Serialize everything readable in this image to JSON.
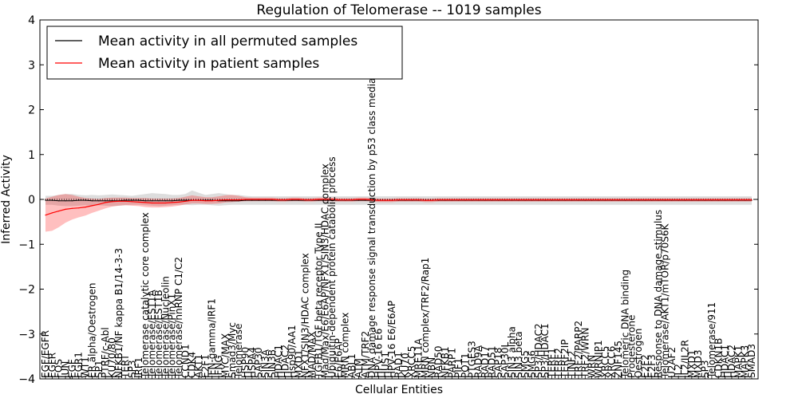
{
  "chart_data": {
    "type": "line",
    "title": "Regulation of Telomerase -- 1019 samples",
    "xlabel": "Cellular Entities",
    "ylabel": "Inferred Activity",
    "ylim": [
      -4,
      4
    ],
    "yticks": [
      -4,
      -3,
      -2,
      -1,
      0,
      1,
      2,
      3,
      4
    ],
    "ytick_labels": [
      "−4",
      "−3",
      "−2",
      "−1",
      "0",
      "1",
      "2",
      "3",
      "4"
    ],
    "grid": false,
    "legend_position": "top-left",
    "legend": [
      "Mean activity in all permuted samples",
      "Mean activity in patient samples"
    ],
    "categories": [
      "EGF/EGFR",
      "EGFR",
      "FOS",
      "JUN",
      "EGF",
      "EGR1",
      "WT1",
      "ER alpha/Oestrogen",
      "SP1",
      "PTRF/c-Abl",
      "KU70/80",
      "NFKB1/NF kappa B1/14-3-3",
      "TERT",
      "SP3",
      "IRF1",
      "Telomerase catalytic core complex",
      "Telomerase/EST1A",
      "Telomerase/EST1B",
      "Telomerase/Nucleolin",
      "Telomerase/PinX1",
      "Telomerase/hnRNP C1/C2",
      "CCND1",
      "CDK4",
      "AKT1",
      "E2F1",
      "IFN-gamma/IRF1",
      "IFNG",
      "MYC/MAX",
      "Smad3/Myc",
      "Telomerase",
      "HSP90",
      "HSPA4",
      "SAP30",
      "SIN3A",
      "SIN3B",
      "HDAC1",
      "HDAC2",
      "Hsp90/AA1",
      "MXD1",
      "NFX1/SIN3/HDAC complex",
      "MAD/MAX",
      "TGFB1/TGF beta receptor Type II",
      "Mad/Max/E6/E6AP/NFX1/SIN3/HDAC complex",
      "Ubiquitin-dependent protein catabolic process",
      "E6/E6AP",
      "MRN complex",
      "ABL1",
      "ATM",
      "ATM/TRF2",
      "DNA damage response signal transduction by p53 class mediator",
      "HPV-16 E6",
      "HUS1",
      "HPV-16 E6/E6AP",
      "RAD1",
      "KU70",
      "XRCC5",
      "MRE11A",
      "MRN complex/TRF2/Rap1",
      "NBN",
      "RAD50",
      "NFKB1",
      "PARP1",
      "PIF1",
      "POT1",
      "PTGES3",
      "RAD9A",
      "RAD17",
      "RAD51",
      "SAP18",
      "SAP30L",
      "SIN3 alpha",
      "SIN3 beta",
      "SMG5",
      "SMG6",
      "SP3/HDAC2",
      "SP3/HDAC1",
      "TERF1",
      "TERF2",
      "TERF2IP",
      "TINF2",
      "TRF2/PARP2",
      "TRF2/WRN",
      "WRN",
      "WRNIP1",
      "XRCC5",
      "XRCC6",
      "ZNF145",
      "Telomeric DNA binding",
      "Progesterone",
      "Oestrogen",
      "E2F2",
      "E2F3",
      "Response to DNA damage stimulus",
      "Telomerase/AKT1/mTOR/p70S6K",
      "U2AF2",
      "IL2",
      "IL2/IL2R",
      "MXD1",
      "MXD3",
      "SP3",
      "Telomerase/911",
      "CDKN1B",
      "HDAC1",
      "HDAC2",
      "MAPK1",
      "MAPK3",
      "SMAD3"
    ],
    "series": [
      {
        "name": "Mean activity in all permuted samples",
        "color": "#000000",
        "values": [
          -0.02,
          -0.02,
          -0.03,
          -0.03,
          -0.03,
          -0.02,
          -0.02,
          -0.03,
          -0.03,
          -0.03,
          -0.03,
          -0.03,
          -0.02,
          -0.02,
          -0.02,
          -0.03,
          -0.03,
          -0.03,
          -0.03,
          -0.03,
          -0.02,
          -0.02,
          -0.02,
          -0.02,
          -0.02,
          -0.02,
          -0.03,
          -0.03,
          -0.03,
          -0.03,
          -0.02,
          -0.02,
          -0.02,
          -0.02,
          -0.02,
          -0.02,
          -0.02,
          -0.02,
          -0.02,
          -0.02,
          -0.02,
          -0.02,
          -0.02,
          -0.02,
          -0.02,
          -0.02,
          -0.02,
          -0.02,
          -0.02,
          -0.02,
          -0.02,
          -0.02,
          -0.02,
          -0.02,
          -0.02,
          -0.02,
          -0.02,
          -0.02,
          -0.02,
          -0.02,
          -0.02,
          -0.02,
          -0.02,
          -0.02,
          -0.02,
          -0.02,
          -0.02,
          -0.02,
          -0.02,
          -0.02,
          -0.02,
          -0.02,
          -0.02,
          -0.02,
          -0.02,
          -0.02,
          -0.02,
          -0.02,
          -0.02,
          -0.02,
          -0.02,
          -0.02,
          -0.02,
          -0.02,
          -0.02,
          -0.02,
          -0.02,
          -0.02,
          -0.02,
          -0.02,
          -0.02,
          -0.02,
          -0.02,
          -0.02,
          -0.02,
          -0.02,
          -0.02,
          -0.02,
          -0.02,
          -0.02,
          -0.02,
          -0.02,
          -0.02,
          -0.02,
          -0.02,
          -0.02,
          -0.02
        ],
        "band": {
          "color": "#bbbbbb",
          "lower": [
            -0.12,
            -0.12,
            -0.14,
            -0.15,
            -0.15,
            -0.14,
            -0.13,
            -0.14,
            -0.13,
            -0.14,
            -0.15,
            -0.14,
            -0.13,
            -0.12,
            -0.12,
            -0.13,
            -0.14,
            -0.15,
            -0.14,
            -0.13,
            -0.12,
            -0.12,
            -0.13,
            -0.12,
            -0.12,
            -0.13,
            -0.14,
            -0.13,
            -0.12,
            -0.12,
            -0.12,
            -0.12,
            -0.12,
            -0.12,
            -0.12,
            -0.12,
            -0.12,
            -0.12,
            -0.12,
            -0.12,
            -0.12,
            -0.12,
            -0.12,
            -0.12,
            -0.12,
            -0.12,
            -0.12,
            -0.12,
            -0.12,
            -0.12,
            -0.12,
            -0.12,
            -0.12,
            -0.12,
            -0.12,
            -0.12,
            -0.12,
            -0.12,
            -0.12,
            -0.12,
            -0.12,
            -0.12,
            -0.12,
            -0.12,
            -0.12,
            -0.12,
            -0.12,
            -0.12,
            -0.12,
            -0.12,
            -0.12,
            -0.12,
            -0.12,
            -0.12,
            -0.12,
            -0.12,
            -0.12,
            -0.12,
            -0.12,
            -0.12,
            -0.12,
            -0.12,
            -0.12,
            -0.12,
            -0.12,
            -0.12,
            -0.12,
            -0.12,
            -0.12,
            -0.12,
            -0.12,
            -0.12,
            -0.12,
            -0.12,
            -0.12,
            -0.12,
            -0.12,
            -0.12,
            -0.12,
            -0.12,
            -0.12,
            -0.12,
            -0.12,
            -0.12,
            -0.12,
            -0.12,
            -0.12
          ],
          "upper": [
            0.08,
            0.08,
            0.1,
            0.12,
            0.12,
            0.1,
            0.09,
            0.1,
            0.09,
            0.1,
            0.11,
            0.1,
            0.09,
            0.08,
            0.1,
            0.12,
            0.14,
            0.13,
            0.12,
            0.1,
            0.1,
            0.12,
            0.2,
            0.15,
            0.1,
            0.12,
            0.14,
            0.12,
            0.1,
            0.1,
            0.08,
            0.07,
            0.07,
            0.07,
            0.07,
            0.07,
            0.07,
            0.07,
            0.07,
            0.07,
            0.07,
            0.07,
            0.07,
            0.07,
            0.07,
            0.07,
            0.07,
            0.07,
            0.07,
            0.07,
            0.07,
            0.07,
            0.07,
            0.07,
            0.07,
            0.07,
            0.07,
            0.07,
            0.07,
            0.07,
            0.07,
            0.07,
            0.07,
            0.07,
            0.07,
            0.07,
            0.07,
            0.07,
            0.07,
            0.07,
            0.07,
            0.07,
            0.07,
            0.07,
            0.07,
            0.07,
            0.07,
            0.07,
            0.07,
            0.07,
            0.07,
            0.07,
            0.07,
            0.07,
            0.07,
            0.07,
            0.07,
            0.07,
            0.07,
            0.07,
            0.07,
            0.07,
            0.07,
            0.07,
            0.07,
            0.07,
            0.07,
            0.07,
            0.07,
            0.07,
            0.07,
            0.07,
            0.07,
            0.07,
            0.07,
            0.07,
            0.07
          ]
        }
      },
      {
        "name": "Mean activity in patient samples",
        "color": "#ff0000",
        "values": [
          -0.35,
          -0.3,
          -0.26,
          -0.22,
          -0.2,
          -0.19,
          -0.17,
          -0.14,
          -0.11,
          -0.07,
          -0.05,
          -0.04,
          -0.04,
          -0.05,
          -0.06,
          -0.07,
          -0.08,
          -0.08,
          -0.08,
          -0.07,
          -0.06,
          -0.04,
          -0.02,
          -0.02,
          -0.03,
          -0.03,
          -0.02,
          -0.01,
          -0.01,
          -0.01,
          0.0,
          0.0,
          0.0,
          0.0,
          0.0,
          -0.01,
          -0.01,
          0.0,
          0.0,
          -0.01,
          -0.01,
          0.0,
          0.0,
          0.0,
          -0.01,
          -0.01,
          -0.01,
          0.0,
          0.0,
          -0.01,
          -0.02,
          -0.02,
          -0.02,
          -0.01,
          -0.01,
          -0.01,
          -0.01,
          -0.02,
          -0.02,
          -0.01,
          -0.01,
          -0.01,
          -0.01,
          -0.01,
          -0.01,
          -0.01,
          -0.01,
          -0.01,
          -0.01,
          -0.01,
          -0.01,
          -0.01,
          -0.01,
          -0.01,
          -0.01,
          -0.01,
          -0.01,
          -0.01,
          -0.01,
          -0.01,
          -0.01,
          -0.01,
          -0.01,
          -0.01,
          -0.01,
          -0.01,
          -0.01,
          -0.01,
          -0.01,
          -0.01,
          -0.01,
          -0.01,
          -0.01,
          -0.01,
          -0.01,
          -0.01,
          -0.01,
          -0.01,
          -0.01,
          -0.01,
          -0.01,
          -0.01,
          -0.01,
          -0.01,
          -0.01,
          -0.01,
          -0.01
        ],
        "band": {
          "color": "#ff0000",
          "lower": [
            -0.72,
            -0.7,
            -0.62,
            -0.52,
            -0.45,
            -0.4,
            -0.36,
            -0.3,
            -0.25,
            -0.2,
            -0.16,
            -0.14,
            -0.13,
            -0.14,
            -0.15,
            -0.17,
            -0.18,
            -0.18,
            -0.17,
            -0.16,
            -0.14,
            -0.11,
            -0.09,
            -0.09,
            -0.1,
            -0.1,
            -0.09,
            -0.07,
            -0.06,
            -0.05,
            -0.04,
            -0.04,
            -0.04,
            -0.04,
            -0.04,
            -0.05,
            -0.05,
            -0.04,
            -0.04,
            -0.05,
            -0.05,
            -0.04,
            -0.04,
            -0.04,
            -0.05,
            -0.05,
            -0.05,
            -0.04,
            -0.04,
            -0.05,
            -0.06,
            -0.06,
            -0.06,
            -0.05,
            -0.05,
            -0.05,
            -0.05,
            -0.06,
            -0.06,
            -0.05,
            -0.05,
            -0.05,
            -0.05,
            -0.05,
            -0.05,
            -0.05,
            -0.05,
            -0.05,
            -0.05,
            -0.05,
            -0.05,
            -0.05,
            -0.05,
            -0.05,
            -0.05,
            -0.05,
            -0.05,
            -0.05,
            -0.05,
            -0.05,
            -0.05,
            -0.05,
            -0.05,
            -0.05,
            -0.05,
            -0.05,
            -0.05,
            -0.05,
            -0.05,
            -0.05,
            -0.05,
            -0.05,
            -0.05,
            -0.05,
            -0.05,
            -0.05,
            -0.05,
            -0.05,
            -0.05,
            -0.05,
            -0.05,
            -0.05,
            -0.05,
            -0.05,
            -0.05,
            -0.05,
            -0.05
          ],
          "upper": [
            0.02,
            0.06,
            0.1,
            0.12,
            0.1,
            0.06,
            0.03,
            0.02,
            0.01,
            0.03,
            0.04,
            0.04,
            0.04,
            0.03,
            0.03,
            0.03,
            0.02,
            0.02,
            0.02,
            0.02,
            0.03,
            0.06,
            0.09,
            0.07,
            0.05,
            0.05,
            0.07,
            0.09,
            0.1,
            0.08,
            0.05,
            0.04,
            0.04,
            0.04,
            0.04,
            0.03,
            0.03,
            0.04,
            0.04,
            0.03,
            0.03,
            0.04,
            0.04,
            0.04,
            0.03,
            0.03,
            0.03,
            0.04,
            0.04,
            0.03,
            0.02,
            0.02,
            0.02,
            0.03,
            0.03,
            0.03,
            0.03,
            0.02,
            0.02,
            0.03,
            0.03,
            0.03,
            0.03,
            0.03,
            0.03,
            0.03,
            0.03,
            0.03,
            0.03,
            0.03,
            0.03,
            0.03,
            0.03,
            0.03,
            0.03,
            0.03,
            0.03,
            0.03,
            0.03,
            0.03,
            0.03,
            0.03,
            0.03,
            0.03,
            0.03,
            0.03,
            0.03,
            0.03,
            0.03,
            0.03,
            0.03,
            0.03,
            0.03,
            0.03,
            0.03,
            0.03,
            0.03,
            0.03,
            0.03,
            0.03,
            0.03,
            0.03,
            0.03,
            0.03,
            0.03,
            0.03,
            0.03
          ]
        }
      }
    ]
  }
}
